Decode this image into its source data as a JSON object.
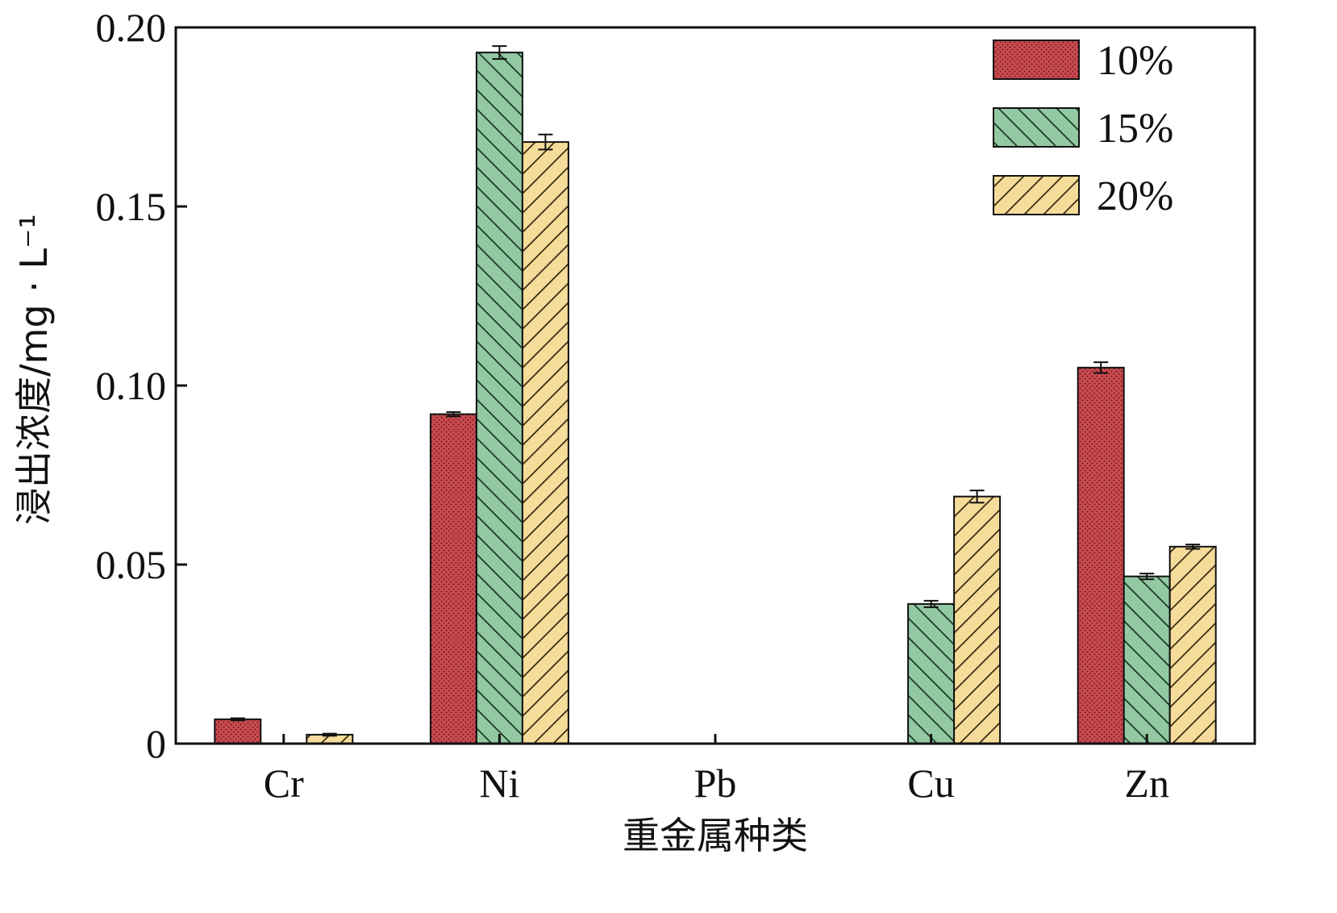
{
  "chart_data": {
    "type": "bar",
    "title": "",
    "xlabel": "重金属种类",
    "ylabel": "浸出浓度/mg · L⁻¹",
    "categories": [
      "Cr",
      "Ni",
      "Pb",
      "Cu",
      "Zn"
    ],
    "ylim": [
      0,
      0.2
    ],
    "yticks": [
      0,
      0.05,
      0.1,
      0.15,
      0.2
    ],
    "ytick_labels": [
      "0",
      "0.05",
      "0.10",
      "0.15",
      "0.20"
    ],
    "legend_position": "top-right",
    "error_bars": true,
    "series": [
      {
        "name": "10%",
        "color": "#c94a4f",
        "pattern": "dots",
        "values": [
          0.0068,
          0.092,
          0,
          0,
          0.105
        ],
        "errors": [
          0.0003,
          0.0006,
          0,
          0,
          0.0015
        ]
      },
      {
        "name": "15%",
        "color": "#92c9a2",
        "pattern": "backslash",
        "values": [
          0,
          0.193,
          0,
          0.039,
          0.0467
        ],
        "errors": [
          0,
          0.0018,
          0,
          0.0009,
          0.0008
        ]
      },
      {
        "name": "20%",
        "color": "#f6dc9a",
        "pattern": "slash",
        "values": [
          0.0025,
          0.168,
          0,
          0.069,
          0.055
        ],
        "errors": [
          0.0003,
          0.0021,
          0,
          0.0017,
          0.0006
        ]
      }
    ]
  }
}
